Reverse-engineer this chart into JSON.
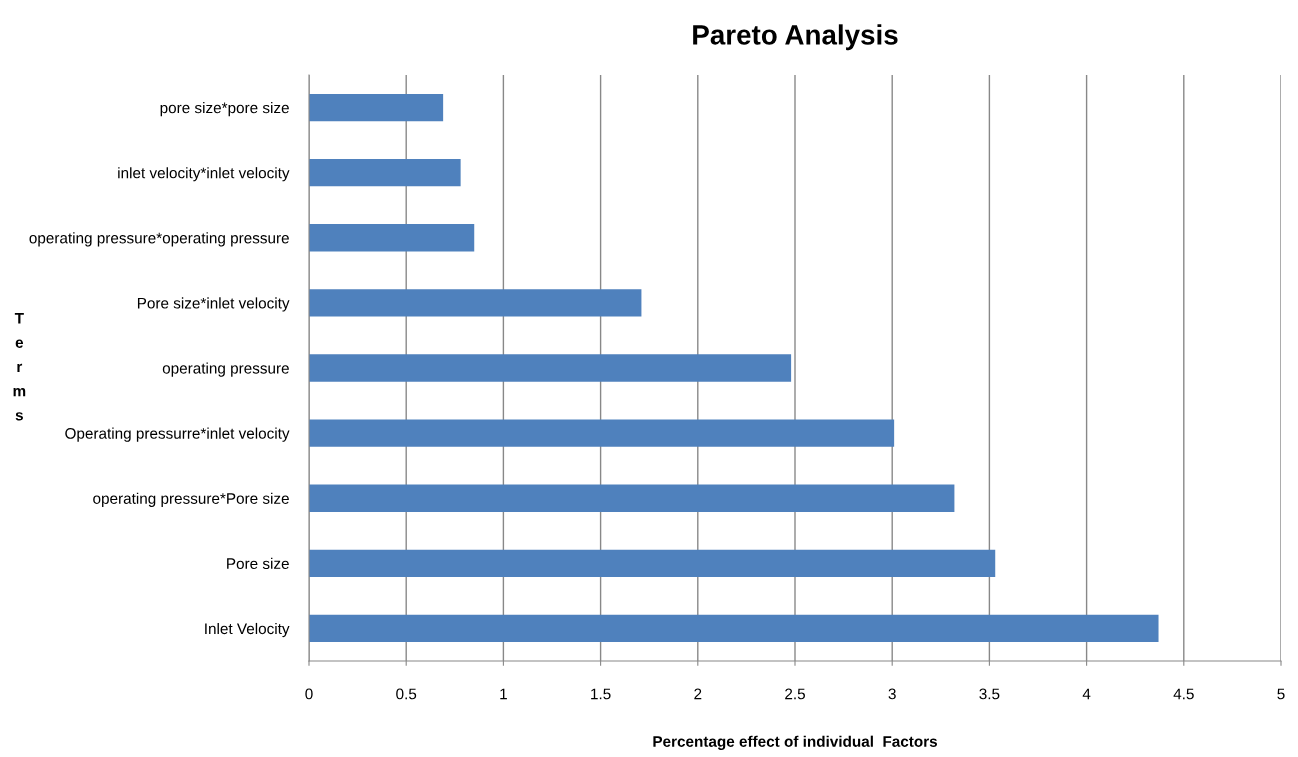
{
  "chart_data": {
    "type": "bar",
    "orientation": "horizontal",
    "title": "Pareto Analysis",
    "xlabel": "Percentage effect of individual  Factors",
    "ylabel": "Terms",
    "categories": [
      "pore size*pore size",
      "inlet velocity*inlet velocity",
      "operating pressure*operating pressure",
      "Pore size*inlet velocity",
      "operating pressure",
      "Operating pressurre*inlet velocity",
      "operating pressure*Pore size",
      "Pore size",
      "Inlet Velocity"
    ],
    "values": [
      0.69,
      0.78,
      0.85,
      1.71,
      2.48,
      3.01,
      3.32,
      3.53,
      4.37
    ],
    "color": "#4f81bd",
    "xlim": [
      0,
      5
    ],
    "xticks": [
      0,
      0.5,
      1,
      1.5,
      2,
      2.5,
      3,
      3.5,
      4,
      4.5,
      5
    ],
    "grid": "x",
    "legend": false
  }
}
